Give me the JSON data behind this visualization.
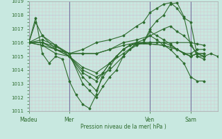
{
  "bg_color": "#c8e8e0",
  "line_color": "#2d6b2d",
  "grid_color_minor": "#ddb8c8",
  "grid_color_major": "#c8b0d0",
  "xlabel_text": "Pression niveau de la mer( hPa )",
  "xtick_labels": [
    "Madeu",
    "Mer",
    "Ven",
    "Sam"
  ],
  "xtick_positions": [
    0,
    36,
    108,
    144
  ],
  "ylim": [
    1011,
    1019
  ],
  "yticks": [
    1011,
    1012,
    1013,
    1014,
    1015,
    1016,
    1017,
    1018,
    1019
  ],
  "total_hours": 168,
  "series": [
    [
      0,
      1016.0,
      6,
      1017.8,
      12,
      1015.2,
      18,
      1014.5,
      24,
      1015.0,
      30,
      1014.8,
      36,
      1013.2,
      42,
      1012.2,
      48,
      1011.5,
      54,
      1011.2,
      60,
      1012.2,
      66,
      1013.8,
      72,
      1014.5,
      78,
      1015.0,
      84,
      1015.5,
      90,
      1015.8,
      96,
      1015.9,
      102,
      1016.0,
      108,
      1017.0,
      114,
      1017.6,
      120,
      1018.0,
      126,
      1018.8,
      132,
      1018.9,
      138,
      1017.9,
      144,
      1015.8,
      150,
      1015.2,
      156,
      1015.0,
      162,
      1015.2,
      168,
      1015.0
    ],
    [
      0,
      1016.0,
      12,
      1016.5,
      24,
      1015.5,
      36,
      1015.2,
      48,
      1013.0,
      54,
      1012.5,
      60,
      1012.0,
      66,
      1012.8,
      72,
      1013.5,
      78,
      1014.0,
      84,
      1015.0,
      90,
      1015.5,
      96,
      1015.8,
      102,
      1016.0,
      108,
      1016.8,
      114,
      1016.5,
      120,
      1016.2,
      126,
      1015.9,
      132,
      1015.5,
      138,
      1015.2,
      144,
      1015.0,
      150,
      1015.2,
      156,
      1015.0
    ],
    [
      0,
      1016.0,
      12,
      1016.2,
      24,
      1015.8,
      36,
      1015.0,
      48,
      1013.5,
      54,
      1013.0,
      60,
      1012.5,
      66,
      1013.5,
      72,
      1014.2,
      78,
      1015.0,
      84,
      1015.5,
      90,
      1015.8,
      96,
      1016.0,
      102,
      1016.2,
      108,
      1016.5,
      114,
      1016.2,
      120,
      1015.8,
      126,
      1015.5,
      132,
      1015.0,
      138,
      1014.5,
      144,
      1013.5,
      150,
      1013.2,
      156,
      1013.2
    ],
    [
      0,
      1016.0,
      12,
      1016.0,
      24,
      1015.5,
      36,
      1015.0,
      48,
      1013.8,
      54,
      1013.5,
      60,
      1013.2,
      66,
      1013.8,
      72,
      1014.5,
      78,
      1015.0,
      84,
      1015.5,
      90,
      1015.8,
      96,
      1016.0,
      102,
      1016.0,
      108,
      1016.0,
      114,
      1016.0,
      120,
      1016.0,
      126,
      1015.8,
      132,
      1015.5,
      138,
      1015.2,
      144,
      1015.2,
      150,
      1015.5,
      156,
      1015.5
    ],
    [
      0,
      1016.0,
      12,
      1015.8,
      24,
      1015.5,
      36,
      1015.0,
      48,
      1014.0,
      60,
      1013.5,
      72,
      1014.0,
      84,
      1015.0,
      96,
      1016.0,
      108,
      1015.9,
      120,
      1015.8,
      132,
      1015.5,
      144,
      1015.0,
      150,
      1015.2,
      156,
      1015.2
    ],
    [
      0,
      1016.0,
      12,
      1015.8,
      24,
      1015.2,
      36,
      1015.0,
      48,
      1014.2,
      60,
      1013.8,
      72,
      1014.5,
      84,
      1015.2,
      96,
      1015.9,
      108,
      1015.9,
      120,
      1015.8,
      132,
      1015.5,
      144,
      1015.0,
      150,
      1015.2,
      156,
      1015.2
    ],
    [
      0,
      1016.0,
      12,
      1016.0,
      24,
      1015.5,
      36,
      1015.2,
      48,
      1015.2,
      60,
      1015.2,
      72,
      1015.5,
      84,
      1015.8,
      96,
      1016.0,
      108,
      1016.0,
      120,
      1016.0,
      132,
      1016.0,
      144,
      1016.0,
      150,
      1015.9,
      156,
      1015.8
    ],
    [
      0,
      1016.0,
      6,
      1017.5,
      12,
      1016.5,
      24,
      1015.8,
      36,
      1015.2,
      48,
      1015.5,
      60,
      1016.0,
      72,
      1016.2,
      84,
      1016.5,
      96,
      1017.2,
      102,
      1017.5,
      108,
      1018.2,
      114,
      1018.5,
      120,
      1018.8,
      126,
      1018.9,
      132,
      1018.5,
      138,
      1017.8,
      144,
      1017.5,
      150,
      1015.0,
      156,
      1014.8
    ],
    [
      0,
      1016.0,
      12,
      1016.0,
      24,
      1015.7,
      36,
      1015.2,
      48,
      1015.2,
      60,
      1015.2,
      72,
      1015.5,
      84,
      1016.0,
      96,
      1016.2,
      108,
      1016.5,
      120,
      1017.0,
      126,
      1017.2,
      132,
      1016.8,
      138,
      1016.5,
      144,
      1016.0,
      150,
      1015.0,
      156,
      1015.0
    ]
  ]
}
